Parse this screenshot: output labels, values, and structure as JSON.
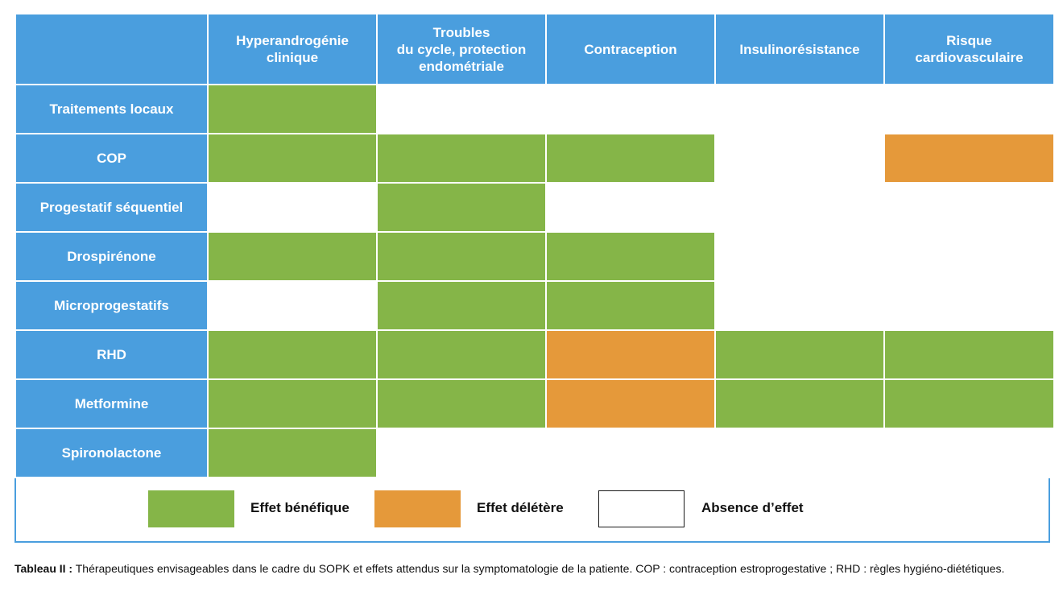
{
  "table": {
    "columns": [
      "",
      "Hyperandrogénie\nclinique",
      "Troubles\ndu cycle, protection\nendométriale",
      "Contraception",
      "Insulinorésistance",
      "Risque\ncardiovasculaire"
    ],
    "rows": [
      {
        "label": "Traitements locaux",
        "effects": [
          "ben",
          "none",
          "none",
          "none",
          "none"
        ]
      },
      {
        "label": "COP",
        "effects": [
          "ben",
          "ben",
          "ben",
          "none",
          "del"
        ]
      },
      {
        "label": "Progestatif séquentiel",
        "effects": [
          "none",
          "ben",
          "none",
          "none",
          "none"
        ]
      },
      {
        "label": "Drospirénone",
        "effects": [
          "ben",
          "ben",
          "ben",
          "none",
          "none"
        ]
      },
      {
        "label": "Microprogestatifs",
        "effects": [
          "none",
          "ben",
          "ben",
          "none",
          "none"
        ]
      },
      {
        "label": "RHD",
        "effects": [
          "ben",
          "ben",
          "del",
          "ben",
          "ben"
        ]
      },
      {
        "label": "Metformine",
        "effects": [
          "ben",
          "ben",
          "del",
          "ben",
          "ben"
        ]
      },
      {
        "label": "Spironolactone",
        "effects": [
          "ben",
          "none",
          "none",
          "none",
          "none"
        ]
      }
    ]
  },
  "legend": {
    "beneficial": "Effet bénéfique",
    "deleterious": "Effet délétère",
    "none": "Absence d’effet"
  },
  "colors": {
    "header_blue": "#4a9ede",
    "beneficial": "#85b548",
    "deleterious": "#e5993a",
    "none": "#ffffff"
  },
  "caption": {
    "label": "Tableau II :",
    "text": " Thérapeutiques envisageables dans le cadre du SOPK et effets attendus sur la symptomatologie de la patiente. COP : contraception estroprogestative ; RHD : règles hygiéno-diététiques."
  }
}
